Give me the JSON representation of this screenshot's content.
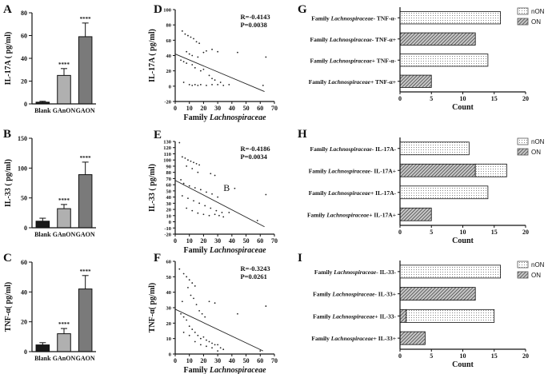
{
  "figure": {
    "colors": {
      "blank": "#1a1a1a",
      "ganon": "#b0b0b0",
      "gaon": "#7a7a7a",
      "axis": "#111111",
      "legend_border": "#555555"
    },
    "chart_data": [
      {
        "panel": "A",
        "type": "bar",
        "categories": [
          "Blank",
          "GAnON",
          "GAON"
        ],
        "values": [
          1.5,
          25,
          59
        ],
        "errors": [
          0.8,
          6,
          12
        ],
        "significance": [
          "",
          "****",
          "****"
        ],
        "ylabel": "IL-17A ( pg/ml)",
        "ylim": [
          0,
          80
        ],
        "yticks": [
          "0",
          "20",
          "40",
          "60",
          "80"
        ]
      },
      {
        "panel": "B",
        "type": "bar",
        "categories": [
          "Blank",
          "GAnON",
          "GAON"
        ],
        "values": [
          11,
          32,
          89
        ],
        "errors": [
          5,
          7,
          21
        ],
        "significance": [
          "",
          "****",
          "****"
        ],
        "ylabel": "IL-33 ( pg/ml)",
        "ylim": [
          0,
          150
        ],
        "yticks": [
          "0",
          "50",
          "100",
          "150"
        ]
      },
      {
        "panel": "C",
        "type": "bar",
        "categories": [
          "Blank",
          "GAnON",
          "GAON"
        ],
        "values": [
          4.5,
          12,
          42
        ],
        "errors": [
          1.5,
          3.5,
          9
        ],
        "significance": [
          "",
          "****",
          "****"
        ],
        "ylabel": "TNF-α( pg/ml)",
        "ylim": [
          0,
          60
        ],
        "yticks": [
          "0",
          "20",
          "40",
          "60"
        ]
      },
      {
        "panel": "D",
        "type": "scatter",
        "xlabel_prefix": "Family ",
        "xlabel_italic": "Lachnospiraceae",
        "ylabel": "IL-17A ( pg/ml)",
        "xlim": [
          0,
          70
        ],
        "ylim": [
          -20,
          100
        ],
        "xticks": [
          "0",
          "10",
          "20",
          "30",
          "40",
          "50",
          "60",
          "70"
        ],
        "yticks": [
          "-20",
          "0",
          "20",
          "40",
          "60",
          "80",
          "100"
        ],
        "annotation": [
          "R=-0.4143",
          "P=0.0038"
        ],
        "fit": {
          "x0": 0,
          "y0": 42,
          "x1": 63,
          "y1": -7
        },
        "points": [
          [
            5,
            72
          ],
          [
            7,
            68
          ],
          [
            9,
            66
          ],
          [
            11,
            64
          ],
          [
            13,
            62
          ],
          [
            15,
            58
          ],
          [
            17,
            56
          ],
          [
            8,
            45
          ],
          [
            10,
            42
          ],
          [
            12,
            40
          ],
          [
            16,
            38
          ],
          [
            20,
            44
          ],
          [
            22,
            46
          ],
          [
            26,
            48
          ],
          [
            30,
            45
          ],
          [
            4,
            34
          ],
          [
            6,
            32
          ],
          [
            8,
            30
          ],
          [
            12,
            28
          ],
          [
            14,
            24
          ],
          [
            18,
            20
          ],
          [
            24,
            14
          ],
          [
            26,
            10
          ],
          [
            28,
            8
          ],
          [
            32,
            5
          ],
          [
            20,
            22
          ],
          [
            6,
            5
          ],
          [
            10,
            2
          ],
          [
            14,
            2
          ],
          [
            18,
            2
          ],
          [
            22,
            1
          ],
          [
            26,
            2
          ],
          [
            30,
            2
          ],
          [
            34,
            1
          ],
          [
            38,
            2
          ],
          [
            12,
            1
          ],
          [
            16,
            1
          ],
          [
            44,
            44
          ],
          [
            64,
            38
          ],
          [
            62,
            1
          ]
        ]
      },
      {
        "panel": "E",
        "type": "scatter",
        "xlabel_prefix": "Family ",
        "xlabel_italic": "Lachnospiraceae",
        "ylabel": "IL-33 ( pg/ml)",
        "xlim": [
          0,
          70
        ],
        "ylim": [
          -20,
          130
        ],
        "xticks": [
          "0",
          "10",
          "20",
          "30",
          "40",
          "50",
          "60",
          "70"
        ],
        "yticks": [
          "-20",
          "-10",
          "0",
          "10",
          "20",
          "30",
          "40",
          "50",
          "60",
          "70",
          "80",
          "90",
          "100",
          "110",
          "120",
          "130"
        ],
        "annotation": [
          "R=-0.4186",
          "P=0.0034"
        ],
        "marker": "B",
        "fit": {
          "x0": 0,
          "y0": 67,
          "x1": 63,
          "y1": -8
        },
        "points": [
          [
            3,
            128
          ],
          [
            5,
            105
          ],
          [
            7,
            103
          ],
          [
            9,
            100
          ],
          [
            11,
            98
          ],
          [
            13,
            96
          ],
          [
            15,
            94
          ],
          [
            17,
            92
          ],
          [
            8,
            90
          ],
          [
            12,
            86
          ],
          [
            16,
            80
          ],
          [
            25,
            78
          ],
          [
            28,
            75
          ],
          [
            4,
            68
          ],
          [
            6,
            62
          ],
          [
            10,
            58
          ],
          [
            14,
            55
          ],
          [
            18,
            52
          ],
          [
            22,
            48
          ],
          [
            26,
            45
          ],
          [
            30,
            40
          ],
          [
            5,
            42
          ],
          [
            9,
            38
          ],
          [
            13,
            34
          ],
          [
            17,
            30
          ],
          [
            21,
            26
          ],
          [
            25,
            22
          ],
          [
            29,
            18
          ],
          [
            33,
            15
          ],
          [
            8,
            22
          ],
          [
            12,
            18
          ],
          [
            16,
            14
          ],
          [
            20,
            12
          ],
          [
            24,
            10
          ],
          [
            28,
            12
          ],
          [
            31,
            10
          ],
          [
            34,
            8
          ],
          [
            42,
            54
          ],
          [
            38,
            15
          ],
          [
            64,
            44
          ],
          [
            58,
            2
          ]
        ]
      },
      {
        "panel": "F",
        "type": "scatter",
        "xlabel_prefix": "Family ",
        "xlabel_italic": "Lachnospiraceae",
        "ylabel": "TNF-α( pg/ml)",
        "xlim": [
          0,
          70
        ],
        "ylim": [
          0,
          60
        ],
        "xticks": [
          "0",
          "10",
          "20",
          "30",
          "40",
          "50",
          "60",
          "70"
        ],
        "yticks": [
          "0",
          "10",
          "20",
          "30",
          "40",
          "50",
          "60"
        ],
        "annotation": [
          "R=-0.3243",
          "P=0.0261"
        ],
        "fit": {
          "x0": 0,
          "y0": 29,
          "x1": 62,
          "y1": 2
        },
        "points": [
          [
            3,
            55
          ],
          [
            6,
            52
          ],
          [
            8,
            50
          ],
          [
            10,
            48
          ],
          [
            12,
            46
          ],
          [
            14,
            44
          ],
          [
            9,
            43
          ],
          [
            11,
            38
          ],
          [
            13,
            36
          ],
          [
            5,
            34
          ],
          [
            15,
            32
          ],
          [
            17,
            28
          ],
          [
            19,
            26
          ],
          [
            21,
            24
          ],
          [
            4,
            26
          ],
          [
            6,
            24
          ],
          [
            8,
            22
          ],
          [
            10,
            18
          ],
          [
            12,
            16
          ],
          [
            14,
            14
          ],
          [
            16,
            12
          ],
          [
            18,
            10
          ],
          [
            20,
            11
          ],
          [
            22,
            9
          ],
          [
            24,
            8
          ],
          [
            26,
            7
          ],
          [
            28,
            6
          ],
          [
            30,
            6
          ],
          [
            32,
            4
          ],
          [
            34,
            3
          ],
          [
            6,
            14
          ],
          [
            10,
            12
          ],
          [
            14,
            8
          ],
          [
            18,
            6
          ],
          [
            22,
            5
          ],
          [
            26,
            4
          ],
          [
            30,
            2
          ],
          [
            24,
            34
          ],
          [
            28,
            33
          ],
          [
            44,
            26
          ],
          [
            64,
            31
          ],
          [
            60,
            2
          ]
        ]
      },
      {
        "panel": "G",
        "type": "bar",
        "orientation": "horizontal",
        "categories": [
          [
            "Family ",
            "Lachnospiraceae",
            "- TNF-α-"
          ],
          [
            "Family ",
            "Lachnospiraceae",
            "- TNF-α+"
          ],
          [
            "Family ",
            "Lachnospiraceae",
            "+ TNF-α-"
          ],
          [
            "Family ",
            "Lachnospiraceae",
            "+ TNF-α+"
          ]
        ],
        "series": [
          {
            "name": "nON",
            "values": [
              16,
              0,
              14,
              0
            ]
          },
          {
            "name": "ON",
            "values": [
              0,
              12,
              0,
              5
            ]
          }
        ],
        "xlabel": "Count",
        "xlim": [
          0,
          20
        ],
        "xticks": [
          "0",
          "5",
          "10",
          "15",
          "20"
        ],
        "legend": "top-right"
      },
      {
        "panel": "H",
        "type": "bar",
        "orientation": "horizontal",
        "categories": [
          [
            "Family ",
            "Lachnospiraceae",
            "- IL-17A-"
          ],
          [
            "Family ",
            "Lachnospiraceae",
            "- IL-17A+"
          ],
          [
            "Family ",
            "Lachnospiraceae",
            "+ IL-17A-"
          ],
          [
            "Family ",
            "Lachnospiraceae",
            "+ IL-17A+"
          ]
        ],
        "series": [
          {
            "name": "nON",
            "values": [
              11,
              17,
              14,
              0
            ]
          },
          {
            "name": "ON",
            "values": [
              0,
              12,
              0,
              5
            ]
          }
        ],
        "xlabel": "Count",
        "xlim": [
          0,
          20
        ],
        "xticks": [
          "0",
          "5",
          "10",
          "15",
          "20"
        ],
        "legend": "top-right"
      },
      {
        "panel": "I",
        "type": "bar",
        "orientation": "horizontal",
        "categories": [
          [
            "Family ",
            "Lachnospiraceae",
            "- IL-33-"
          ],
          [
            "Family ",
            "Lachnospiraceae",
            "- IL-33+"
          ],
          [
            "Family ",
            "Lachnospiraceae",
            "+ IL-33-"
          ],
          [
            "Family ",
            "Lachnospiraceae",
            "+ IL-33+"
          ]
        ],
        "series": [
          {
            "name": "nON",
            "values": [
              16,
              0,
              15,
              0
            ]
          },
          {
            "name": "ON",
            "values": [
              0,
              12,
              1,
              4
            ]
          }
        ],
        "xlabel": "Count",
        "xlim": [
          0,
          20
        ],
        "xticks": [
          "0",
          "5",
          "10",
          "15",
          "20"
        ],
        "legend": "top-right"
      }
    ]
  }
}
